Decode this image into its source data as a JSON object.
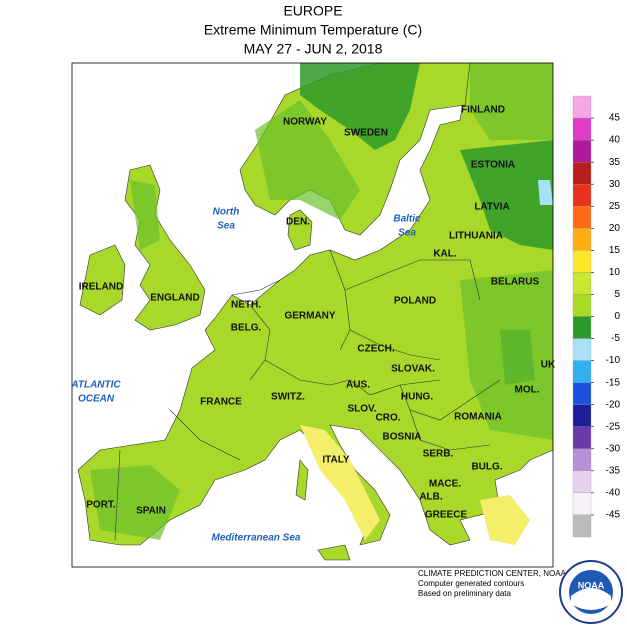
{
  "header": {
    "title": "EUROPE",
    "subtitle": "Extreme Minimum Temperature (C)",
    "dates": "MAY 27 - JUN 2, 2018"
  },
  "countries": [
    "NORWAY",
    "SWEDEN",
    "FINLAND",
    "ESTONIA",
    "LATVIA",
    "DEN.",
    "LITHUANIA",
    "KAL.",
    "IRELAND",
    "ENGLAND",
    "BELARUS",
    "NETH.",
    "BELG.",
    "GERMANY",
    "POLAND",
    "CZECH.",
    "SLOVAK.",
    "UK",
    "AUS.",
    "MOL.",
    "FRANCE",
    "SWITZ.",
    "HUNG.",
    "SLOV.",
    "ROMANIA",
    "CRO.",
    "BOSNIA",
    "ITALY",
    "SERB.",
    "BULG.",
    "MACE.",
    "ALB.",
    "GREECE",
    "PORT.",
    "SPAIN"
  ],
  "seas": [
    [
      "North",
      "Sea"
    ],
    [
      "Baltic",
      "Sea"
    ],
    [
      "ATLANTIC",
      "OCEAN"
    ],
    [
      "Mediterranean Sea"
    ]
  ],
  "legend": {
    "ticks": [
      45,
      40,
      35,
      30,
      25,
      20,
      15,
      10,
      5,
      0,
      -5,
      -10,
      -15,
      -20,
      -25,
      -30,
      -35,
      -40,
      -45
    ],
    "colors": [
      "#f4a6e6",
      "#e03cc8",
      "#b01a9a",
      "#b81e1e",
      "#e8321e",
      "#ff6a14",
      "#ffae14",
      "#ffe62a",
      "#c8e632",
      "#a8d82a",
      "#2e9a2a",
      "#a8e0f8",
      "#30b0f0",
      "#1e50e0",
      "#1e1e9a",
      "#6a3aa8",
      "#b890d8",
      "#e8d0f0",
      "#f8f0f8",
      "#bbbbbb"
    ]
  },
  "footer": [
    "CLIMATE PREDICTION CENTER, NOAA",
    "Computer generated contours",
    "Based on preliminary data"
  ],
  "logo": "NOAA"
}
